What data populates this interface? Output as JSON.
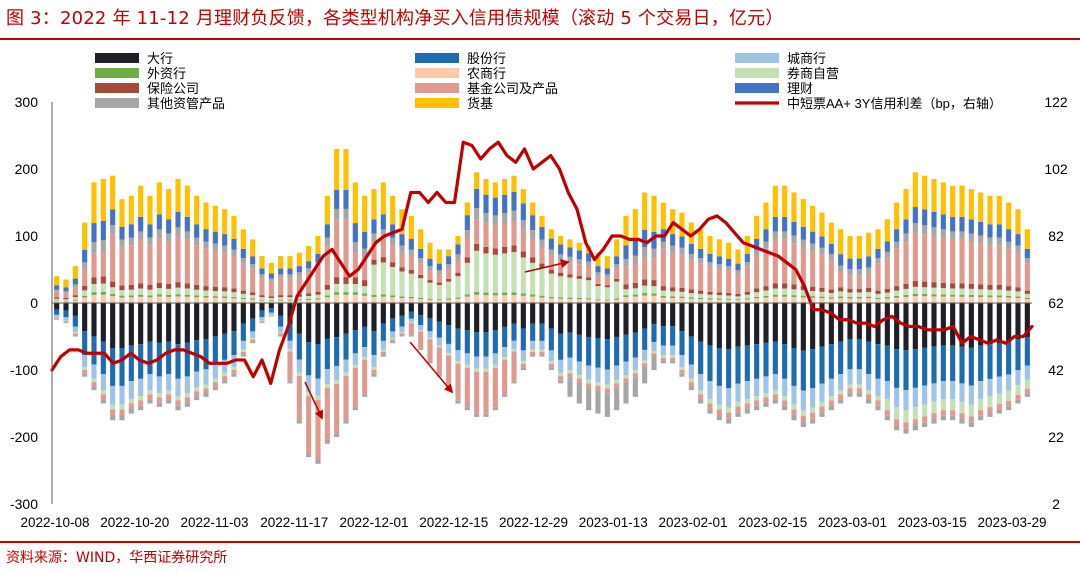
{
  "title": "图 3：2022 年 11-12 月理财负反馈，各类型机构净买入信用债规模（滚动 5 个交易日，亿元）",
  "source": "资料来源：WIND，华西证券研究所",
  "colors": {
    "accent": "#c00000",
    "large_bank": "#1f1f28",
    "joint_stock": "#1f6bb0",
    "city_bank": "#9ec3e6",
    "foreign": "#70ad47",
    "rural": "#f8cbad",
    "broker": "#c5e0b4",
    "insurance": "#a5493a",
    "fund": "#df9a90",
    "wealth": "#4472c4",
    "other": "#a6a6a6",
    "mmf": "#ffc000",
    "spread": "#c00000"
  },
  "chart_data": {
    "type": "bar",
    "stacked": true,
    "x_tick_labels": [
      "2022-10-08",
      "2022-10-20",
      "2022-11-03",
      "2022-11-17",
      "2022-12-01",
      "2022-12-15",
      "2022-12-29",
      "2023-01-13",
      "2023-02-01",
      "2023-02-15",
      "2023-03-01",
      "2023-03-15",
      "2023-03-29"
    ],
    "left_axis": {
      "ylim": [
        -300,
        300
      ],
      "ticks": [
        -300,
        -200,
        -100,
        0,
        100,
        200,
        300
      ]
    },
    "right_axis": {
      "ylim": [
        2,
        122
      ],
      "ticks": [
        2,
        22,
        42,
        62,
        82,
        102,
        122
      ]
    },
    "legend": [
      {
        "name": "大行",
        "key": "large_bank",
        "kind": "bar"
      },
      {
        "name": "股份行",
        "key": "joint_stock",
        "kind": "bar"
      },
      {
        "name": "城商行",
        "key": "city_bank",
        "kind": "bar"
      },
      {
        "name": "外资行",
        "key": "foreign",
        "kind": "bar"
      },
      {
        "name": "农商行",
        "key": "rural",
        "kind": "bar"
      },
      {
        "name": "券商自营",
        "key": "broker",
        "kind": "bar"
      },
      {
        "name": "保险公司",
        "key": "insurance",
        "kind": "bar"
      },
      {
        "name": "基金公司及产品",
        "key": "fund",
        "kind": "bar"
      },
      {
        "name": "理财",
        "key": "wealth",
        "kind": "bar"
      },
      {
        "name": "其他资管产品",
        "key": "other",
        "kind": "bar"
      },
      {
        "name": "货基",
        "key": "mmf",
        "kind": "bar"
      },
      {
        "name": "中短票AA+ 3Y信用利差（bp，右轴）",
        "key": "spread",
        "kind": "line"
      }
    ],
    "positive_total_approx": [
      40,
      35,
      55,
      120,
      180,
      185,
      190,
      155,
      160,
      175,
      160,
      180,
      170,
      185,
      175,
      160,
      150,
      145,
      140,
      130,
      110,
      95,
      70,
      60,
      70,
      70,
      75,
      85,
      100,
      160,
      230,
      230,
      180,
      160,
      170,
      180,
      160,
      140,
      130,
      110,
      90,
      80,
      80,
      100,
      150,
      195,
      185,
      180,
      185,
      190,
      170,
      150,
      130,
      110,
      100,
      95,
      90,
      85,
      75,
      70,
      95,
      130,
      140,
      165,
      160,
      150,
      140,
      135,
      120,
      110,
      100,
      95,
      90,
      80,
      100,
      130,
      150,
      175,
      175,
      165,
      155,
      145,
      135,
      120,
      110,
      100,
      100,
      105,
      110,
      125,
      150,
      170,
      195,
      190,
      185,
      180,
      175,
      175,
      170,
      165,
      160,
      160,
      150,
      140,
      110
    ],
    "negative_total_approx": [
      -25,
      -30,
      -50,
      -110,
      -130,
      -150,
      -175,
      -175,
      -165,
      -160,
      -150,
      -155,
      -150,
      -160,
      -155,
      -145,
      -140,
      -130,
      -120,
      -110,
      -80,
      -60,
      -30,
      -20,
      -50,
      -120,
      -180,
      -230,
      -240,
      -210,
      -200,
      -180,
      -160,
      -140,
      -110,
      -80,
      -60,
      -50,
      -50,
      -70,
      -90,
      -110,
      -130,
      -150,
      -160,
      -170,
      -170,
      -160,
      -140,
      -120,
      -100,
      -80,
      -80,
      -100,
      -120,
      -140,
      -150,
      -160,
      -165,
      -170,
      -160,
      -150,
      -140,
      -120,
      -100,
      -90,
      -90,
      -110,
      -130,
      -150,
      -165,
      -175,
      -180,
      -170,
      -165,
      -160,
      -155,
      -150,
      -160,
      -175,
      -185,
      -180,
      -170,
      -160,
      -150,
      -140,
      -140,
      -150,
      -160,
      -175,
      -190,
      -195,
      -190,
      -185,
      -180,
      -175,
      -175,
      -180,
      -185,
      -175,
      -170,
      -165,
      -160,
      -150,
      -140
    ],
    "spread_series_bp": [
      42,
      46,
      48,
      48,
      47,
      47,
      47,
      44,
      45,
      47,
      45,
      44,
      45,
      47,
      48,
      48,
      47,
      46,
      44,
      44,
      44,
      45,
      45,
      40,
      45,
      38,
      48,
      55,
      64,
      68,
      72,
      76,
      78,
      74,
      70,
      72,
      76,
      80,
      82,
      83,
      84,
      95,
      95,
      92,
      95,
      92,
      92,
      110,
      109,
      105,
      108,
      110,
      106,
      104,
      108,
      102,
      104,
      106,
      102,
      95,
      90,
      80,
      75,
      78,
      82,
      82,
      81,
      81,
      80,
      82,
      82,
      86,
      84,
      82,
      84,
      87,
      88,
      86,
      83,
      80,
      79,
      78,
      77,
      76,
      74,
      72,
      67,
      60,
      60,
      59,
      57,
      57,
      56,
      56,
      55,
      57,
      58,
      56,
      55,
      55,
      54,
      54,
      54,
      55,
      50,
      52,
      51,
      50,
      51,
      50,
      52,
      52,
      55
    ]
  }
}
